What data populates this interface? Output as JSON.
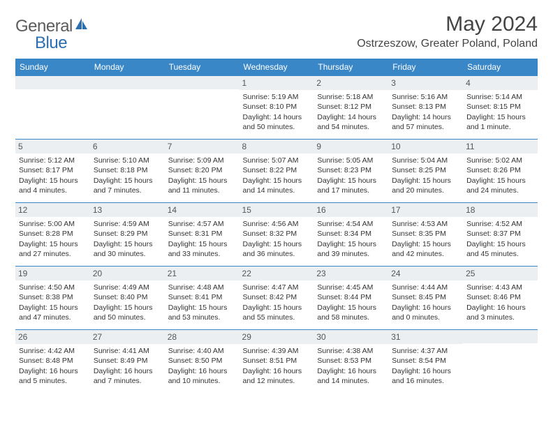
{
  "logo": {
    "general": "General",
    "blue": "Blue"
  },
  "title": "May 2024",
  "location": "Ostrzeszow, Greater Poland, Poland",
  "colors": {
    "header_bg": "#3a87c8",
    "header_text": "#ffffff",
    "daynum_bg": "#eceff1",
    "border": "#3a87c8",
    "logo_blue": "#2b6fb0",
    "logo_gray": "#5c5c5c"
  },
  "day_headers": [
    "Sunday",
    "Monday",
    "Tuesday",
    "Wednesday",
    "Thursday",
    "Friday",
    "Saturday"
  ],
  "weeks": [
    [
      null,
      null,
      null,
      {
        "n": "1",
        "sr": "5:19 AM",
        "ss": "8:10 PM",
        "dl": "14 hours and 50 minutes."
      },
      {
        "n": "2",
        "sr": "5:18 AM",
        "ss": "8:12 PM",
        "dl": "14 hours and 54 minutes."
      },
      {
        "n": "3",
        "sr": "5:16 AM",
        "ss": "8:13 PM",
        "dl": "14 hours and 57 minutes."
      },
      {
        "n": "4",
        "sr": "5:14 AM",
        "ss": "8:15 PM",
        "dl": "15 hours and 1 minute."
      }
    ],
    [
      {
        "n": "5",
        "sr": "5:12 AM",
        "ss": "8:17 PM",
        "dl": "15 hours and 4 minutes."
      },
      {
        "n": "6",
        "sr": "5:10 AM",
        "ss": "8:18 PM",
        "dl": "15 hours and 7 minutes."
      },
      {
        "n": "7",
        "sr": "5:09 AM",
        "ss": "8:20 PM",
        "dl": "15 hours and 11 minutes."
      },
      {
        "n": "8",
        "sr": "5:07 AM",
        "ss": "8:22 PM",
        "dl": "15 hours and 14 minutes."
      },
      {
        "n": "9",
        "sr": "5:05 AM",
        "ss": "8:23 PM",
        "dl": "15 hours and 17 minutes."
      },
      {
        "n": "10",
        "sr": "5:04 AM",
        "ss": "8:25 PM",
        "dl": "15 hours and 20 minutes."
      },
      {
        "n": "11",
        "sr": "5:02 AM",
        "ss": "8:26 PM",
        "dl": "15 hours and 24 minutes."
      }
    ],
    [
      {
        "n": "12",
        "sr": "5:00 AM",
        "ss": "8:28 PM",
        "dl": "15 hours and 27 minutes."
      },
      {
        "n": "13",
        "sr": "4:59 AM",
        "ss": "8:29 PM",
        "dl": "15 hours and 30 minutes."
      },
      {
        "n": "14",
        "sr": "4:57 AM",
        "ss": "8:31 PM",
        "dl": "15 hours and 33 minutes."
      },
      {
        "n": "15",
        "sr": "4:56 AM",
        "ss": "8:32 PM",
        "dl": "15 hours and 36 minutes."
      },
      {
        "n": "16",
        "sr": "4:54 AM",
        "ss": "8:34 PM",
        "dl": "15 hours and 39 minutes."
      },
      {
        "n": "17",
        "sr": "4:53 AM",
        "ss": "8:35 PM",
        "dl": "15 hours and 42 minutes."
      },
      {
        "n": "18",
        "sr": "4:52 AM",
        "ss": "8:37 PM",
        "dl": "15 hours and 45 minutes."
      }
    ],
    [
      {
        "n": "19",
        "sr": "4:50 AM",
        "ss": "8:38 PM",
        "dl": "15 hours and 47 minutes."
      },
      {
        "n": "20",
        "sr": "4:49 AM",
        "ss": "8:40 PM",
        "dl": "15 hours and 50 minutes."
      },
      {
        "n": "21",
        "sr": "4:48 AM",
        "ss": "8:41 PM",
        "dl": "15 hours and 53 minutes."
      },
      {
        "n": "22",
        "sr": "4:47 AM",
        "ss": "8:42 PM",
        "dl": "15 hours and 55 minutes."
      },
      {
        "n": "23",
        "sr": "4:45 AM",
        "ss": "8:44 PM",
        "dl": "15 hours and 58 minutes."
      },
      {
        "n": "24",
        "sr": "4:44 AM",
        "ss": "8:45 PM",
        "dl": "16 hours and 0 minutes."
      },
      {
        "n": "25",
        "sr": "4:43 AM",
        "ss": "8:46 PM",
        "dl": "16 hours and 3 minutes."
      }
    ],
    [
      {
        "n": "26",
        "sr": "4:42 AM",
        "ss": "8:48 PM",
        "dl": "16 hours and 5 minutes."
      },
      {
        "n": "27",
        "sr": "4:41 AM",
        "ss": "8:49 PM",
        "dl": "16 hours and 7 minutes."
      },
      {
        "n": "28",
        "sr": "4:40 AM",
        "ss": "8:50 PM",
        "dl": "16 hours and 10 minutes."
      },
      {
        "n": "29",
        "sr": "4:39 AM",
        "ss": "8:51 PM",
        "dl": "16 hours and 12 minutes."
      },
      {
        "n": "30",
        "sr": "4:38 AM",
        "ss": "8:53 PM",
        "dl": "16 hours and 14 minutes."
      },
      {
        "n": "31",
        "sr": "4:37 AM",
        "ss": "8:54 PM",
        "dl": "16 hours and 16 minutes."
      },
      null
    ]
  ],
  "labels": {
    "sunrise": "Sunrise:",
    "sunset": "Sunset:",
    "daylight": "Daylight:"
  }
}
